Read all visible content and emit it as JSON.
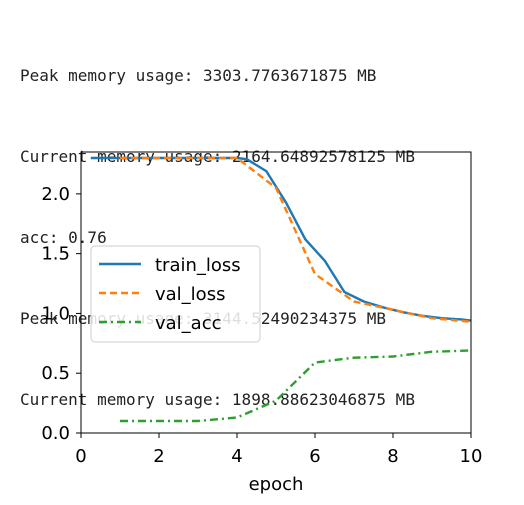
{
  "output_log": [
    "Peak memory usage: 3303.7763671875 MB",
    "Current memory usage: 2164.64892578125 MB",
    "acc: 0.76",
    "Peak memory usage: 3144.52490234375 MB",
    "Current memory usage: 1898.88623046875 MB"
  ],
  "chart_data": {
    "type": "line",
    "xlabel": "epoch",
    "ylabel": "",
    "xlim": [
      0,
      10
    ],
    "ylim": [
      0,
      2.35
    ],
    "xticks": [
      "0",
      "2",
      "4",
      "6",
      "8",
      "10"
    ],
    "yticks": [
      "0.0",
      "0.5",
      "1.0",
      "1.5",
      "2.0"
    ],
    "grid": false,
    "legend_position": "center-left",
    "series": [
      {
        "name": "train_loss",
        "color": "#1f77b4",
        "style": "solid",
        "x": [
          0.25,
          0.5,
          1.0,
          1.5,
          2.0,
          2.5,
          3.0,
          3.5,
          4.0,
          4.25,
          4.75,
          5.25,
          5.75,
          6.25,
          6.75,
          7.25,
          7.75,
          8.25,
          8.75,
          9.25,
          9.75,
          10.0
        ],
        "y": [
          2.3,
          2.3,
          2.3,
          2.3,
          2.3,
          2.3,
          2.3,
          2.3,
          2.3,
          2.29,
          2.19,
          1.93,
          1.62,
          1.44,
          1.18,
          1.1,
          1.05,
          1.01,
          0.98,
          0.96,
          0.95,
          0.94
        ]
      },
      {
        "name": "val_loss",
        "color": "#ff7f0e",
        "style": "dashed",
        "x": [
          1,
          2,
          3,
          4,
          5,
          6,
          7,
          8,
          9,
          10
        ],
        "y": [
          2.3,
          2.3,
          2.3,
          2.3,
          2.05,
          1.33,
          1.1,
          1.03,
          0.96,
          0.93
        ]
      },
      {
        "name": "val_acc",
        "color": "#2ca02c",
        "style": "dashdot",
        "x": [
          1,
          2,
          3,
          4,
          5,
          6,
          7,
          8,
          9,
          10
        ],
        "y": [
          0.1,
          0.1,
          0.1,
          0.13,
          0.27,
          0.59,
          0.63,
          0.64,
          0.68,
          0.69
        ]
      }
    ]
  }
}
